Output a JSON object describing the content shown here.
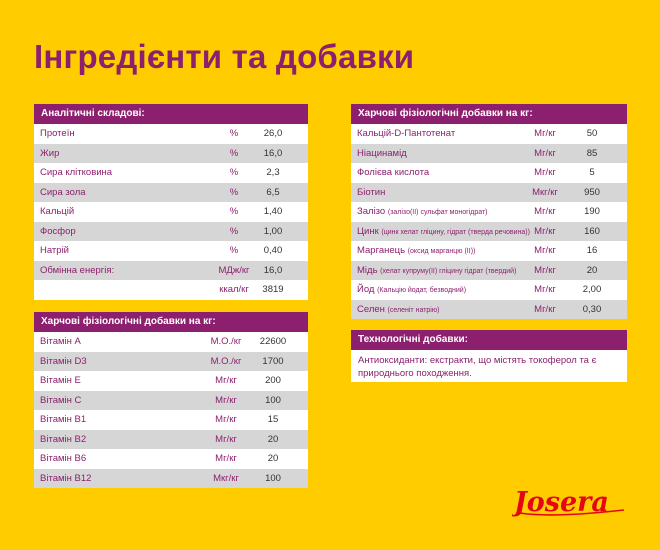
{
  "page": {
    "title": "Інгредієнти та добавки"
  },
  "analytical": {
    "header": "Аналітичні складові:",
    "rows": [
      {
        "name": "Протеїн",
        "unit": "%",
        "value": "26,0"
      },
      {
        "name": "Жир",
        "unit": "%",
        "value": "16,0"
      },
      {
        "name": "Сира клітковина",
        "unit": "%",
        "value": "2,3"
      },
      {
        "name": "Сира зола",
        "unit": "%",
        "value": "6,5"
      },
      {
        "name": "Кальцій",
        "unit": "%",
        "value": "1,40"
      },
      {
        "name": "Фосфор",
        "unit": "%",
        "value": "1,00"
      },
      {
        "name": "Натрій",
        "unit": "%",
        "value": "0,40"
      },
      {
        "name": "Обмінна енергія:",
        "unit": "МДж/кг",
        "value": "16,0"
      },
      {
        "name": "",
        "unit": "ккал/кг",
        "value": "3819"
      }
    ]
  },
  "vitamins": {
    "header": "Харчові фізіологічні добавки на кг:",
    "rows": [
      {
        "name": "Вітамін A",
        "unit": "М.О./кг",
        "value": "22600"
      },
      {
        "name": "Вітамін D3",
        "unit": "М.О./кг",
        "value": "1700"
      },
      {
        "name": "Вітамін E",
        "unit": "Мг/кг",
        "value": "200"
      },
      {
        "name": "Вітамін C",
        "unit": "Мг/кг",
        "value": "100"
      },
      {
        "name": "Вітамін B1",
        "unit": "Мг/кг",
        "value": "15"
      },
      {
        "name": "Вітамін B2",
        "unit": "Мг/кг",
        "value": "20"
      },
      {
        "name": "Вітамін B6",
        "unit": "Мг/кг",
        "value": "20"
      },
      {
        "name": "Вітамін B12",
        "unit": "Мкг/кг",
        "value": "100"
      }
    ]
  },
  "additives": {
    "header": "Харчові фізіологічні добавки на кг:",
    "rows": [
      {
        "name": "Кальцій-D-Пантотенат",
        "note": "",
        "unit": "Мг/кг",
        "value": "50"
      },
      {
        "name": "Ніацинамід",
        "note": "",
        "unit": "Мг/кг",
        "value": "85"
      },
      {
        "name": "Фолієва кислота",
        "note": "",
        "unit": "Мг/кг",
        "value": "5"
      },
      {
        "name": "Біотин",
        "note": "",
        "unit": "Мкг/кг",
        "value": "950"
      },
      {
        "name": "Залізо",
        "note": "(залізо(II) сульфат моногідрат)",
        "unit": "Мг/кг",
        "value": "190"
      },
      {
        "name": "Цинк",
        "note": "(цинк хелат гліцину, гідрат (тверда речовина))",
        "unit": "Мг/кг",
        "value": "160"
      },
      {
        "name": "Марганець",
        "note": "(оксид марганцю (II))",
        "unit": "Мг/кг",
        "value": "16"
      },
      {
        "name": "Мідь",
        "note": "(хелат купруму(II) гліцину гідрат (твердий)",
        "unit": "Мг/кг",
        "value": "20"
      },
      {
        "name": "Йод",
        "note": "(Кальцію йодат, безводний)",
        "unit": "Мг/кг",
        "value": "2,00"
      },
      {
        "name": "Селен",
        "note": "(селеніт натрію)",
        "unit": "Мг/кг",
        "value": "0,30"
      }
    ]
  },
  "technological": {
    "header": "Технологічні добавки:",
    "text": "Антиоксиданти: екстракти, що містять токоферол та є природнього походження."
  },
  "logo": {
    "text": "Josera",
    "color": "#E30613"
  }
}
